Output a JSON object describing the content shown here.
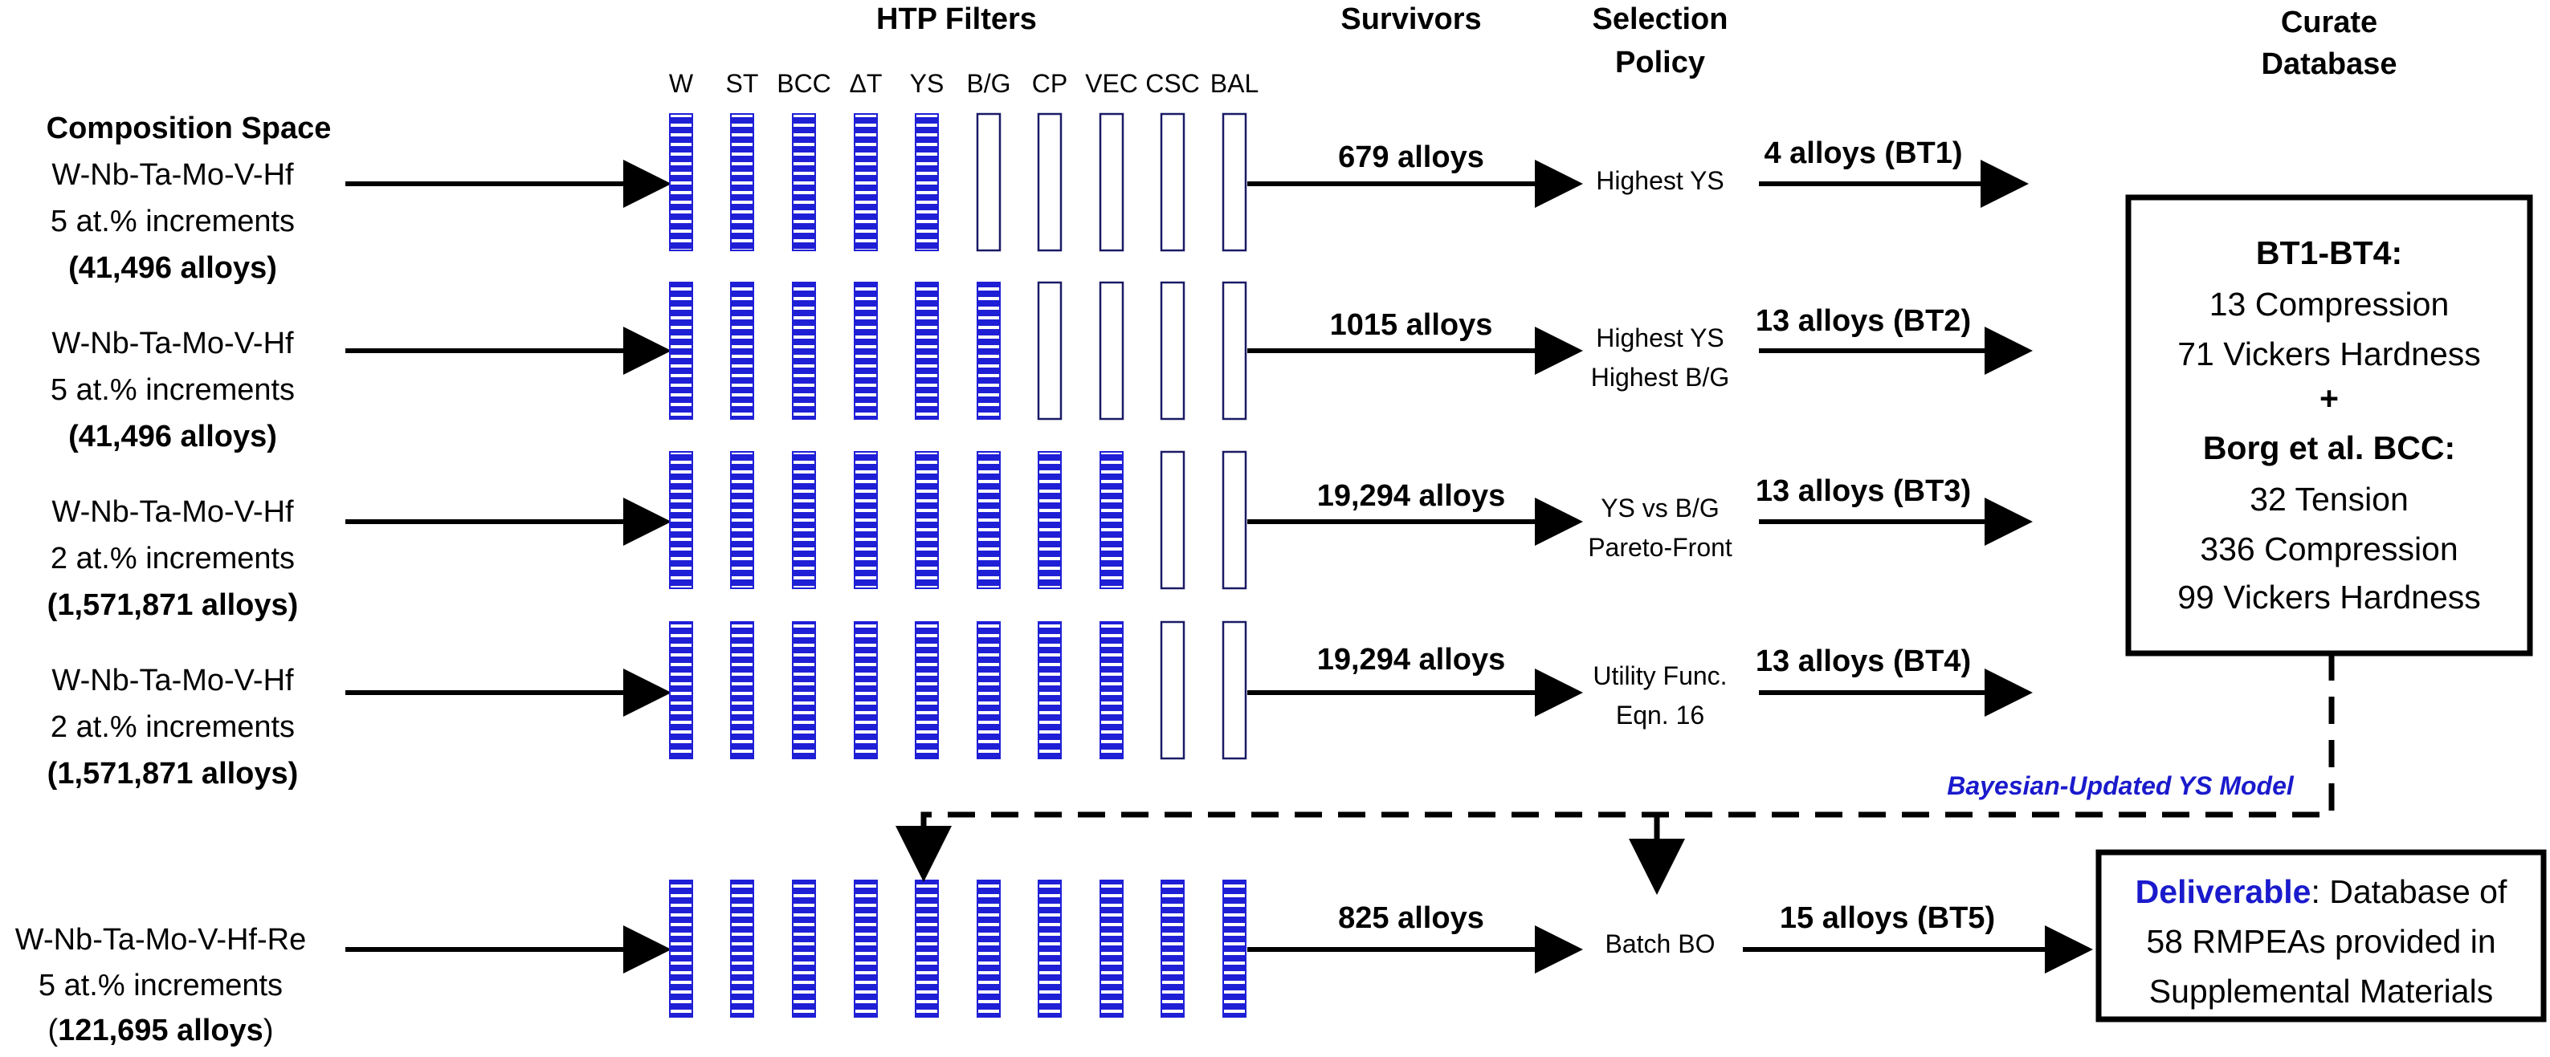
{
  "headers": {
    "composition_space": "Composition Space",
    "htp_filters": "HTP Filters",
    "survivors": "Survivors",
    "selection_policy": [
      "Selection",
      "Policy"
    ],
    "curate_database": [
      "Curate",
      "Database"
    ]
  },
  "filters": [
    "W",
    "ST",
    "BCC",
    "ΔT",
    "YS",
    "B/G",
    "CP",
    "VEC",
    "CSC",
    "BAL"
  ],
  "rows": [
    {
      "system": "W-Nb-Ta-Mo-V-Hf",
      "increment": "5 at.% increments",
      "count": "(41,496 alloys)",
      "active_filters": 5,
      "survivors": "679 alloys",
      "policy": [
        "Highest YS"
      ],
      "selected": "4 alloys (BT1)"
    },
    {
      "system": "W-Nb-Ta-Mo-V-Hf",
      "increment": "5 at.% increments",
      "count": "(41,496 alloys)",
      "active_filters": 6,
      "survivors": "1015 alloys",
      "policy": [
        "Highest YS",
        "Highest B/G"
      ],
      "selected": "13 alloys (BT2)"
    },
    {
      "system": "W-Nb-Ta-Mo-V-Hf",
      "increment": "2 at.% increments",
      "count": "(1,571,871 alloys)",
      "active_filters": 8,
      "survivors": "19,294 alloys",
      "policy": [
        "YS vs B/G",
        "Pareto-Front"
      ],
      "selected": "13 alloys (BT3)"
    },
    {
      "system": "W-Nb-Ta-Mo-V-Hf",
      "increment": "2 at.% increments",
      "count": "(1,571,871 alloys)",
      "active_filters": 8,
      "survivors": "19,294 alloys",
      "policy": [
        "Utility Func.",
        "Eqn. 16"
      ],
      "selected": "13 alloys (BT4)"
    },
    {
      "system": "W-Nb-Ta-Mo-V-Hf-Re",
      "increment": "5 at.% increments",
      "count": "121,695 alloys",
      "active_filters": 10,
      "survivors": "825 alloys",
      "policy": [
        "Batch BO"
      ],
      "selected": "15 alloys (BT5)"
    }
  ],
  "database": {
    "title": "BT1-BT4:",
    "lines_a": [
      "13 Compression",
      "71 Vickers Hardness"
    ],
    "plus": "+",
    "subtitle": "Borg et al. BCC:",
    "lines_b": [
      "32 Tension",
      "336 Compression",
      "99 Vickers Hardness"
    ]
  },
  "feedback_label": "Bayesian-Updated YS Model",
  "deliverable": {
    "label": "Deliverable",
    "text": ": Database of",
    "lines": [
      "58 RMPEAs provided in",
      "Supplemental Materials"
    ]
  },
  "colors": {
    "filter_fill": "#1f1fd6",
    "accent_text": "#1a1acc",
    "line": "#000000"
  }
}
